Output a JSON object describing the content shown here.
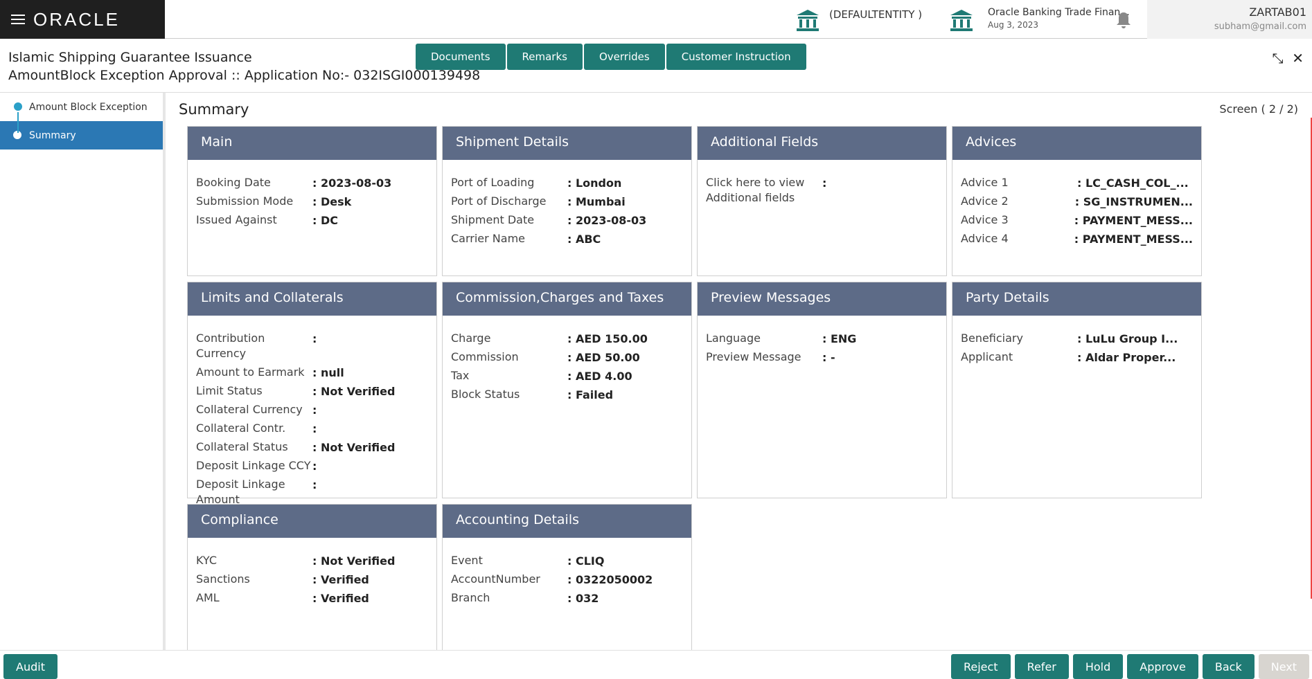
{
  "header": {
    "brand": "ORACLE",
    "entity": "(DEFAULTENTITY )",
    "app": "Oracle Banking Trade Finan...",
    "date": "Aug 3, 2023",
    "user": "ZARTAB01",
    "email": "subham@gmail.com"
  },
  "title": "Islamic Shipping Guarantee Issuance",
  "subtitle": "AmountBlock Exception Approval :: Application No:- 032ISGI000139498",
  "toolbar": [
    "Documents",
    "Remarks",
    "Overrides",
    "Customer Instruction"
  ],
  "nav": [
    "Amount Block Exception",
    "Summary"
  ],
  "summary": {
    "title": "Summary",
    "screen": "Screen ( 2 / 2)"
  },
  "cards": [
    {
      "title": "Main",
      "rows": [
        [
          "Booking Date",
          ": 2023-08-03"
        ],
        [
          "Submission Mode",
          ": Desk"
        ],
        [
          "Issued Against",
          ": DC"
        ]
      ]
    },
    {
      "title": "Shipment Details",
      "rows": [
        [
          "Port of Loading",
          ": London"
        ],
        [
          "Port of Discharge",
          ": Mumbai"
        ],
        [
          "Shipment Date",
          ": 2023-08-03"
        ],
        [
          "Carrier Name",
          ": ABC"
        ]
      ]
    },
    {
      "title": "Additional Fields",
      "rows": [
        [
          "Click here to view Additional fields",
          ":"
        ]
      ]
    },
    {
      "title": "Advices",
      "rows": [
        [
          "Advice 1",
          ": LC_CASH_COL_..."
        ],
        [
          "Advice 2",
          ": SG_INSTRUMEN..."
        ],
        [
          "Advice 3",
          ": PAYMENT_MESS..."
        ],
        [
          "Advice 4",
          ": PAYMENT_MESS..."
        ]
      ]
    },
    {
      "title": "Limits and Collaterals",
      "rows": [
        [
          "Contribution Currency",
          ":"
        ],
        [
          "Amount to Earmark",
          ": null"
        ],
        [
          "Limit Status",
          ": Not Verified"
        ],
        [
          "Collateral Currency",
          ":"
        ],
        [
          "Collateral Contr.",
          ":"
        ],
        [
          "Collateral Status",
          ": Not Verified"
        ],
        [
          "Deposit Linkage CCY",
          ":"
        ],
        [
          "Deposit Linkage Amount",
          ":"
        ]
      ]
    },
    {
      "title": "Commission,Charges and Taxes",
      "rows": [
        [
          "Charge",
          ": AED  150.00"
        ],
        [
          "Commission",
          ": AED  50.00"
        ],
        [
          "Tax",
          ": AED  4.00"
        ],
        [
          "Block Status",
          ": Failed"
        ]
      ]
    },
    {
      "title": "Preview Messages",
      "rows": [
        [
          "Language",
          ": ENG"
        ],
        [
          "Preview Message",
          ": -"
        ]
      ]
    },
    {
      "title": "Party Details",
      "rows": [
        [
          "Beneficiary",
          ": LuLu Group I..."
        ],
        [
          "Applicant",
          ": Aldar Proper..."
        ]
      ]
    },
    {
      "title": "Compliance",
      "rows": [
        [
          "KYC",
          ": Not Verified"
        ],
        [
          "Sanctions",
          ": Verified"
        ],
        [
          "AML",
          ": Verified"
        ]
      ]
    },
    {
      "title": "Accounting Details",
      "rows": [
        [
          "Event",
          ": CLIQ"
        ],
        [
          "AccountNumber",
          ": 0322050002"
        ],
        [
          "Branch",
          ": 032"
        ]
      ]
    }
  ],
  "footer": {
    "left": [
      "Audit"
    ],
    "right": [
      "Reject",
      "Refer",
      "Hold",
      "Approve",
      "Back",
      "Next"
    ]
  }
}
